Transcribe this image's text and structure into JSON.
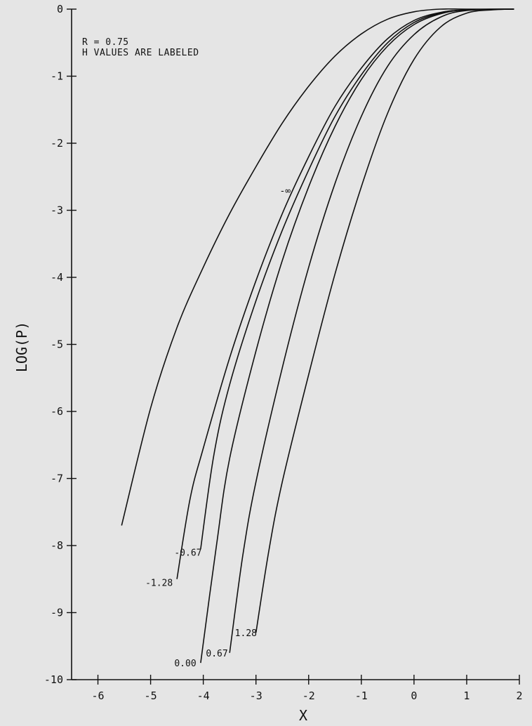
{
  "chart_data": {
    "type": "line",
    "annotation_lines": [
      "R = 0.75",
      "H VALUES ARE LABELED"
    ],
    "xlabel": "X",
    "ylabel": "LOG(P)",
    "xlim": [
      -6.5,
      2
    ],
    "ylim": [
      -10,
      0
    ],
    "x_ticks": [
      -6,
      -5,
      -4,
      -3,
      -2,
      -1,
      0,
      1,
      2
    ],
    "x_tick_labels": [
      "-6",
      "-5",
      "-4",
      "-3",
      "-2",
      "-1",
      "0",
      "1",
      "2"
    ],
    "y_ticks": [
      0,
      -1,
      -2,
      -3,
      -4,
      -5,
      -6,
      -7,
      -8,
      -9,
      -10
    ],
    "y_tick_labels": [
      "0",
      "-1",
      "-2",
      "-3",
      "-4",
      "-5",
      "-6",
      "-7",
      "-8",
      "-9",
      "-10"
    ],
    "grid": false,
    "legend": "none",
    "series": [
      {
        "name": "-∞",
        "label_text": "-∞",
        "label_x": -2.55,
        "label_y": -2.7,
        "points": [
          [
            -5.55,
            -7.7
          ],
          [
            -5.0,
            -5.95
          ],
          [
            -4.5,
            -4.75
          ],
          [
            -4.0,
            -3.85
          ],
          [
            -3.5,
            -3.05
          ],
          [
            -3.0,
            -2.35
          ],
          [
            -2.5,
            -1.7
          ],
          [
            -2.0,
            -1.15
          ],
          [
            -1.5,
            -0.7
          ],
          [
            -1.0,
            -0.37
          ],
          [
            -0.5,
            -0.15
          ],
          [
            0.0,
            -0.04
          ],
          [
            0.5,
            0.0
          ],
          [
            1.0,
            0.0
          ],
          [
            1.9,
            0.0
          ]
        ]
      },
      {
        "name": "-0.67",
        "label_text": "-0.67",
        "label_x": -4.55,
        "label_y": -8.1,
        "points": [
          [
            -4.05,
            -8.05
          ],
          [
            -3.8,
            -6.65
          ],
          [
            -3.5,
            -5.6
          ],
          [
            -3.0,
            -4.35
          ],
          [
            -2.5,
            -3.3
          ],
          [
            -2.0,
            -2.4
          ],
          [
            -1.5,
            -1.6
          ],
          [
            -1.0,
            -0.98
          ],
          [
            -0.5,
            -0.5
          ],
          [
            0.0,
            -0.2
          ],
          [
            0.5,
            -0.06
          ],
          [
            1.0,
            -0.01
          ],
          [
            1.9,
            0.0
          ]
        ]
      },
      {
        "name": "-1.28",
        "label_text": "-1.28",
        "label_x": -5.1,
        "label_y": -8.55,
        "points": [
          [
            -4.5,
            -8.5
          ],
          [
            -4.25,
            -7.3
          ],
          [
            -4.0,
            -6.55
          ],
          [
            -3.5,
            -5.2
          ],
          [
            -3.0,
            -4.05
          ],
          [
            -2.5,
            -3.05
          ],
          [
            -2.0,
            -2.2
          ],
          [
            -1.5,
            -1.45
          ],
          [
            -1.0,
            -0.88
          ],
          [
            -0.5,
            -0.44
          ],
          [
            0.0,
            -0.17
          ],
          [
            0.5,
            -0.05
          ],
          [
            1.0,
            -0.01
          ],
          [
            1.9,
            0.0
          ]
        ]
      },
      {
        "name": "0.00",
        "label_text": "0.00",
        "label_x": -4.55,
        "label_y": -9.75,
        "points": [
          [
            -4.05,
            -9.75
          ],
          [
            -3.75,
            -8.0
          ],
          [
            -3.5,
            -6.7
          ],
          [
            -3.0,
            -5.1
          ],
          [
            -2.5,
            -3.75
          ],
          [
            -2.0,
            -2.65
          ],
          [
            -1.5,
            -1.75
          ],
          [
            -1.0,
            -1.05
          ],
          [
            -0.5,
            -0.55
          ],
          [
            0.0,
            -0.23
          ],
          [
            0.5,
            -0.07
          ],
          [
            1.0,
            -0.01
          ],
          [
            1.9,
            0.0
          ]
        ]
      },
      {
        "name": "0.67",
        "label_text": "0.67",
        "label_x": -3.95,
        "label_y": -9.6,
        "points": [
          [
            -3.5,
            -9.6
          ],
          [
            -3.25,
            -8.15
          ],
          [
            -3.0,
            -7.05
          ],
          [
            -2.5,
            -5.35
          ],
          [
            -2.0,
            -3.85
          ],
          [
            -1.5,
            -2.6
          ],
          [
            -1.0,
            -1.6
          ],
          [
            -0.5,
            -0.85
          ],
          [
            0.0,
            -0.38
          ],
          [
            0.5,
            -0.12
          ],
          [
            1.0,
            -0.02
          ],
          [
            1.9,
            0.0
          ]
        ]
      },
      {
        "name": "1.28",
        "label_text": "1.28",
        "label_x": -3.4,
        "label_y": -9.3,
        "points": [
          [
            -3.0,
            -9.3
          ],
          [
            -2.75,
            -8.05
          ],
          [
            -2.5,
            -7.05
          ],
          [
            -2.0,
            -5.45
          ],
          [
            -1.5,
            -3.95
          ],
          [
            -1.0,
            -2.65
          ],
          [
            -0.5,
            -1.55
          ],
          [
            0.0,
            -0.75
          ],
          [
            0.5,
            -0.27
          ],
          [
            1.0,
            -0.06
          ],
          [
            1.5,
            -0.01
          ],
          [
            1.9,
            0.0
          ]
        ]
      }
    ]
  }
}
